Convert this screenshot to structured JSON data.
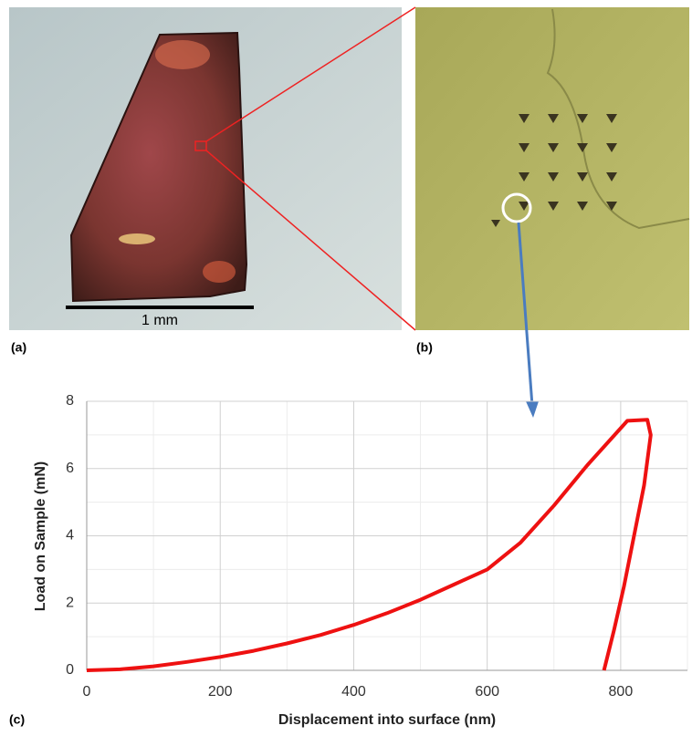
{
  "panels": {
    "a": {
      "label": "(a)",
      "scale_bar": "1 mm"
    },
    "b": {
      "label": "(b)"
    },
    "c": {
      "label": "(c)"
    }
  },
  "chart_data": {
    "type": "line",
    "xlabel": "Displacement into surface (nm)",
    "ylabel": "Load on Sample (mN)",
    "x": [
      0,
      50,
      100,
      150,
      200,
      250,
      300,
      350,
      400,
      450,
      500,
      550,
      600,
      650,
      700,
      750,
      800,
      810,
      840,
      845,
      835,
      820,
      805,
      790,
      775
    ],
    "values": [
      0,
      0.03,
      0.12,
      0.25,
      0.4,
      0.58,
      0.8,
      1.05,
      1.35,
      1.7,
      2.1,
      2.55,
      3.0,
      3.8,
      4.9,
      6.1,
      7.2,
      7.42,
      7.45,
      7.0,
      5.5,
      4.0,
      2.5,
      1.2,
      0
    ],
    "color": "#ee1111",
    "xlim": [
      0,
      900
    ],
    "ylim": [
      0,
      8
    ],
    "xticks": [
      0,
      200,
      400,
      600,
      800
    ],
    "yticks": [
      0,
      2,
      4,
      6,
      8
    ],
    "grid": true,
    "minor_grid": true
  }
}
